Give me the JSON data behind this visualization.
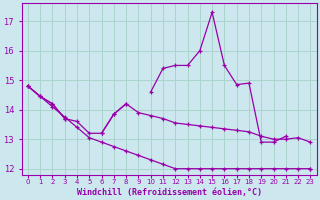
{
  "xlabel": "Windchill (Refroidissement éolien,°C)",
  "ylabel": "",
  "bg_color": "#cce8ee",
  "line_color": "#9900aa",
  "grid_color": "#aad4cc",
  "hours": [
    0,
    1,
    2,
    3,
    4,
    5,
    6,
    7,
    8,
    9,
    10,
    11,
    12,
    13,
    14,
    15,
    16,
    17,
    18,
    19,
    20,
    21,
    22,
    23
  ],
  "line_straight": [
    14.8,
    14.45,
    14.1,
    13.75,
    13.4,
    13.05,
    12.9,
    12.75,
    12.6,
    12.45,
    12.3,
    12.15,
    12.0,
    12.0,
    12.0,
    12.0,
    12.0,
    12.0,
    12.0,
    12.0,
    12.0,
    12.0,
    12.0,
    12.0
  ],
  "line_mid": [
    14.8,
    14.45,
    14.2,
    13.7,
    13.6,
    13.2,
    13.2,
    13.85,
    14.2,
    13.9,
    13.8,
    13.7,
    13.55,
    13.5,
    13.45,
    13.4,
    13.35,
    13.3,
    13.25,
    13.1,
    13.0,
    13.0,
    13.05,
    12.9
  ],
  "line_peak": [
    14.8,
    14.45,
    14.2,
    13.7,
    null,
    null,
    13.2,
    13.85,
    14.2,
    null,
    14.6,
    15.4,
    15.5,
    15.5,
    16.0,
    17.3,
    15.5,
    14.85,
    14.9,
    12.9,
    12.9,
    13.1,
    null,
    12.0
  ],
  "ylim": [
    11.8,
    17.6
  ],
  "yticks": [
    12,
    13,
    14,
    15,
    16,
    17
  ]
}
